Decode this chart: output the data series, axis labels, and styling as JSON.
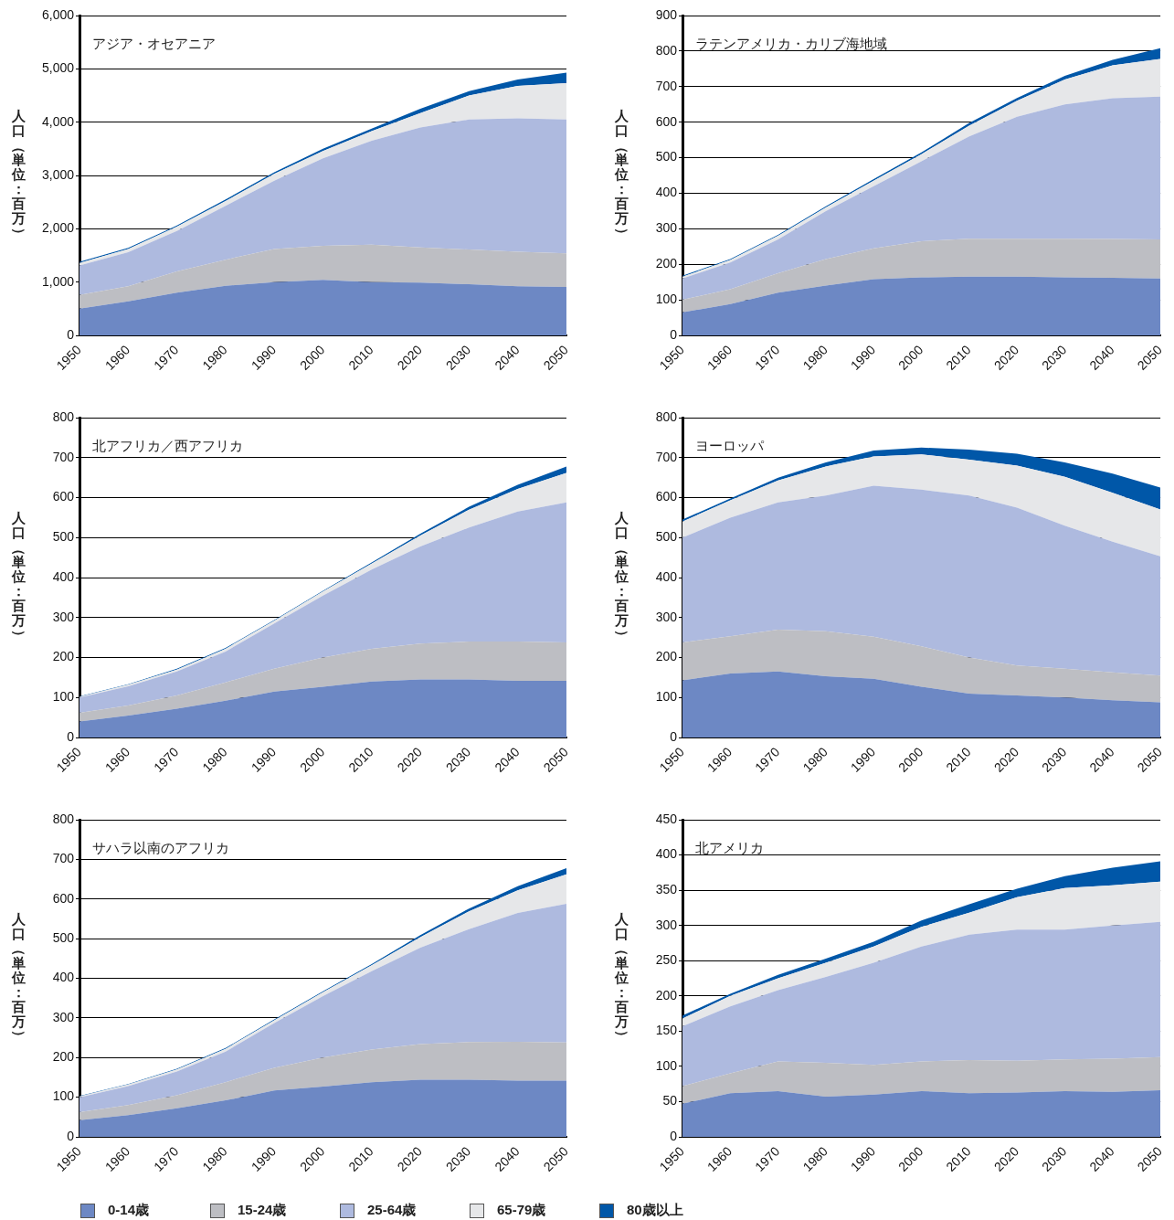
{
  "chart_data": [
    {
      "type": "area",
      "title": "アジア・オセアニア",
      "ylabel": "人口（単位：百万）",
      "stacked": true,
      "grid": "y",
      "x": [
        1950,
        1960,
        1970,
        1980,
        1990,
        2000,
        2010,
        2020,
        2030,
        2040,
        2050
      ],
      "xlim": [
        1950,
        2050
      ],
      "xticks": [
        1950,
        1960,
        1970,
        1980,
        1990,
        2000,
        2010,
        2020,
        2030,
        2040,
        2050
      ],
      "ylim": [
        0,
        6000
      ],
      "yticks": [
        0,
        {
          "value": 1000,
          "label": "1,000"
        },
        {
          "value": 2000,
          "label": "2,000"
        },
        {
          "value": 3000,
          "label": "3,000"
        },
        {
          "value": 4000,
          "label": "4,000"
        },
        {
          "value": 5000,
          "label": "5,000"
        },
        {
          "value": 6000,
          "label": "6,000"
        }
      ],
      "series": [
        {
          "color": "#6d88c4",
          "values": [
            500,
            640,
            800,
            930,
            1000,
            1040,
            1000,
            990,
            960,
            920,
            910
          ]
        },
        {
          "color": "#bdbec3",
          "values": [
            260,
            280,
            400,
            490,
            620,
            640,
            700,
            660,
            650,
            650,
            630
          ]
        },
        {
          "color": "#aebadf",
          "values": [
            550,
            640,
            760,
            1010,
            1280,
            1640,
            1950,
            2250,
            2440,
            2500,
            2510
          ]
        },
        {
          "color": "#e6e7e9",
          "values": [
            50,
            60,
            80,
            90,
            130,
            140,
            180,
            270,
            450,
            610,
            680
          ]
        },
        {
          "color": "#0057a8",
          "values": [
            20,
            20,
            20,
            30,
            30,
            40,
            50,
            80,
            80,
            120,
            200
          ]
        }
      ]
    },
    {
      "type": "area",
      "title": "ラテンアメリカ・カリブ海地域",
      "ylabel": "人口（単位：百万）",
      "stacked": true,
      "grid": "y",
      "x": [
        1950,
        1960,
        1970,
        1980,
        1990,
        2000,
        2010,
        2020,
        2030,
        2040,
        2050
      ],
      "xlim": [
        1950,
        2050
      ],
      "xticks": [
        1950,
        1960,
        1970,
        1980,
        1990,
        2000,
        2010,
        2020,
        2030,
        2040,
        2050
      ],
      "ylim": [
        0,
        900
      ],
      "yticks": [
        0,
        100,
        200,
        300,
        400,
        500,
        600,
        700,
        800,
        900
      ],
      "series": [
        {
          "color": "#6d88c4",
          "values": [
            65,
            88,
            120,
            140,
            158,
            163,
            165,
            165,
            163,
            162,
            160
          ]
        },
        {
          "color": "#bdbec3",
          "values": [
            35,
            42,
            55,
            75,
            87,
            102,
            107,
            107,
            109,
            109,
            110
          ]
        },
        {
          "color": "#aebadf",
          "values": [
            60,
            75,
            95,
            135,
            175,
            225,
            288,
            343,
            378,
            396,
            402
          ]
        },
        {
          "color": "#e6e7e9",
          "values": [
            5,
            7,
            10,
            10,
            15,
            20,
            30,
            45,
            70,
            93,
            106
          ]
        },
        {
          "color": "#0057a8",
          "values": [
            3,
            3,
            3,
            3,
            5,
            5,
            8,
            8,
            10,
            15,
            30
          ]
        }
      ]
    },
    {
      "type": "area",
      "title": "北アフリカ／西アフリカ",
      "ylabel": "人口（単位：百万）",
      "stacked": true,
      "grid": "y",
      "x": [
        1950,
        1960,
        1970,
        1980,
        1990,
        2000,
        2010,
        2020,
        2030,
        2040,
        2050
      ],
      "xlim": [
        1950,
        2050
      ],
      "xticks": [
        1950,
        1960,
        1970,
        1980,
        1990,
        2000,
        2010,
        2020,
        2030,
        2040,
        2050
      ],
      "ylim": [
        0,
        800
      ],
      "yticks": [
        0,
        100,
        200,
        300,
        400,
        500,
        600,
        700,
        800
      ],
      "series": [
        {
          "color": "#6d88c4",
          "values": [
            40,
            55,
            72,
            92,
            115,
            127,
            140,
            145,
            145,
            142,
            142
          ]
        },
        {
          "color": "#bdbec3",
          "values": [
            22,
            25,
            33,
            46,
            57,
            73,
            82,
            90,
            95,
            98,
            96
          ]
        },
        {
          "color": "#aebadf",
          "values": [
            38,
            48,
            60,
            77,
            113,
            155,
            198,
            243,
            285,
            325,
            350
          ]
        },
        {
          "color": "#e6e7e9",
          "values": [
            2,
            4,
            5,
            7,
            7,
            10,
            15,
            27,
            45,
            57,
            74
          ]
        },
        {
          "color": "#0057a8",
          "values": [
            1,
            1,
            2,
            2,
            2,
            2,
            3,
            5,
            7,
            10,
            16
          ]
        }
      ]
    },
    {
      "type": "area",
      "title": "ヨーロッパ",
      "ylabel": "人口（単位：百万）",
      "stacked": true,
      "grid": "y",
      "x": [
        1950,
        1960,
        1970,
        1980,
        1990,
        2000,
        2010,
        2020,
        2030,
        2040,
        2050
      ],
      "xlim": [
        1950,
        2050
      ],
      "xticks": [
        1950,
        1960,
        1970,
        1980,
        1990,
        2000,
        2010,
        2020,
        2030,
        2040,
        2050
      ],
      "ylim": [
        0,
        800
      ],
      "yticks": [
        0,
        100,
        200,
        300,
        400,
        500,
        600,
        700,
        800
      ],
      "series": [
        {
          "color": "#6d88c4",
          "values": [
            143,
            160,
            165,
            153,
            147,
            127,
            110,
            105,
            100,
            93,
            88
          ]
        },
        {
          "color": "#bdbec3",
          "values": [
            95,
            93,
            105,
            113,
            105,
            101,
            90,
            75,
            72,
            70,
            67
          ]
        },
        {
          "color": "#aebadf",
          "values": [
            262,
            297,
            318,
            339,
            378,
            392,
            405,
            395,
            358,
            327,
            298
          ]
        },
        {
          "color": "#e6e7e9",
          "values": [
            40,
            43,
            55,
            73,
            73,
            88,
            90,
            105,
            122,
            122,
            117
          ]
        },
        {
          "color": "#0057a8",
          "values": [
            5,
            5,
            7,
            10,
            15,
            17,
            25,
            30,
            36,
            48,
            55
          ]
        }
      ]
    },
    {
      "type": "area",
      "title": "サハラ以南のアフリカ",
      "ylabel": "人口（単位：百万）",
      "stacked": true,
      "grid": "y",
      "legend": "bottom",
      "x": [
        1950,
        1960,
        1970,
        1980,
        1990,
        2000,
        2010,
        2020,
        2030,
        2040,
        2050
      ],
      "xlim": [
        1950,
        2050
      ],
      "xticks": [
        1950,
        1960,
        1970,
        1980,
        1990,
        2000,
        2010,
        2020,
        2030,
        2040,
        2050
      ],
      "ylim": [
        0,
        800
      ],
      "yticks": [
        0,
        100,
        200,
        300,
        400,
        500,
        600,
        700,
        800
      ],
      "series": [
        {
          "name": "0-14歳",
          "color": "#6d88c4",
          "values": [
            42,
            55,
            72,
            92,
            117,
            127,
            138,
            144,
            144,
            142,
            142
          ]
        },
        {
          "name": "15-24歳",
          "color": "#bdbec3",
          "values": [
            20,
            25,
            33,
            46,
            57,
            73,
            82,
            90,
            95,
            98,
            96
          ]
        },
        {
          "name": "25-64歳",
          "color": "#aebadf",
          "values": [
            38,
            48,
            60,
            77,
            113,
            155,
            198,
            243,
            285,
            325,
            350
          ]
        },
        {
          "name": "65-79歳",
          "color": "#e6e7e9",
          "values": [
            2,
            4,
            5,
            7,
            7,
            10,
            15,
            27,
            45,
            57,
            74
          ]
        },
        {
          "name": "80歳以上",
          "color": "#0057a8",
          "values": [
            1,
            1,
            2,
            2,
            2,
            2,
            3,
            5,
            7,
            10,
            16
          ]
        }
      ]
    },
    {
      "type": "area",
      "title": "北アメリカ",
      "ylabel": "人口（単位：百万）",
      "stacked": true,
      "grid": "y",
      "x": [
        1950,
        1960,
        1970,
        1980,
        1990,
        2000,
        2010,
        2020,
        2030,
        2040,
        2050
      ],
      "xlim": [
        1950,
        2050
      ],
      "xticks": [
        1950,
        1960,
        1970,
        1980,
        1990,
        2000,
        2010,
        2020,
        2030,
        2040,
        2050
      ],
      "ylim": [
        0,
        450
      ],
      "yticks": [
        0,
        50,
        100,
        150,
        200,
        250,
        300,
        350,
        400,
        450
      ],
      "series": [
        {
          "color": "#6d88c4",
          "values": [
            47,
            62,
            65,
            57,
            60,
            65,
            62,
            63,
            65,
            64,
            66
          ]
        },
        {
          "color": "#bdbec3",
          "values": [
            25,
            28,
            42,
            48,
            42,
            42,
            47,
            45,
            45,
            47,
            47
          ]
        },
        {
          "color": "#aebadf",
          "values": [
            85,
            95,
            101,
            122,
            145,
            163,
            178,
            186,
            184,
            189,
            192
          ]
        },
        {
          "color": "#e6e7e9",
          "values": [
            11,
            15,
            17,
            20,
            23,
            28,
            31,
            46,
            59,
            57,
            57
          ]
        },
        {
          "color": "#0057a8",
          "values": [
            4,
            3,
            5,
            6,
            7,
            9,
            12,
            12,
            17,
            25,
            29
          ]
        }
      ]
    }
  ]
}
